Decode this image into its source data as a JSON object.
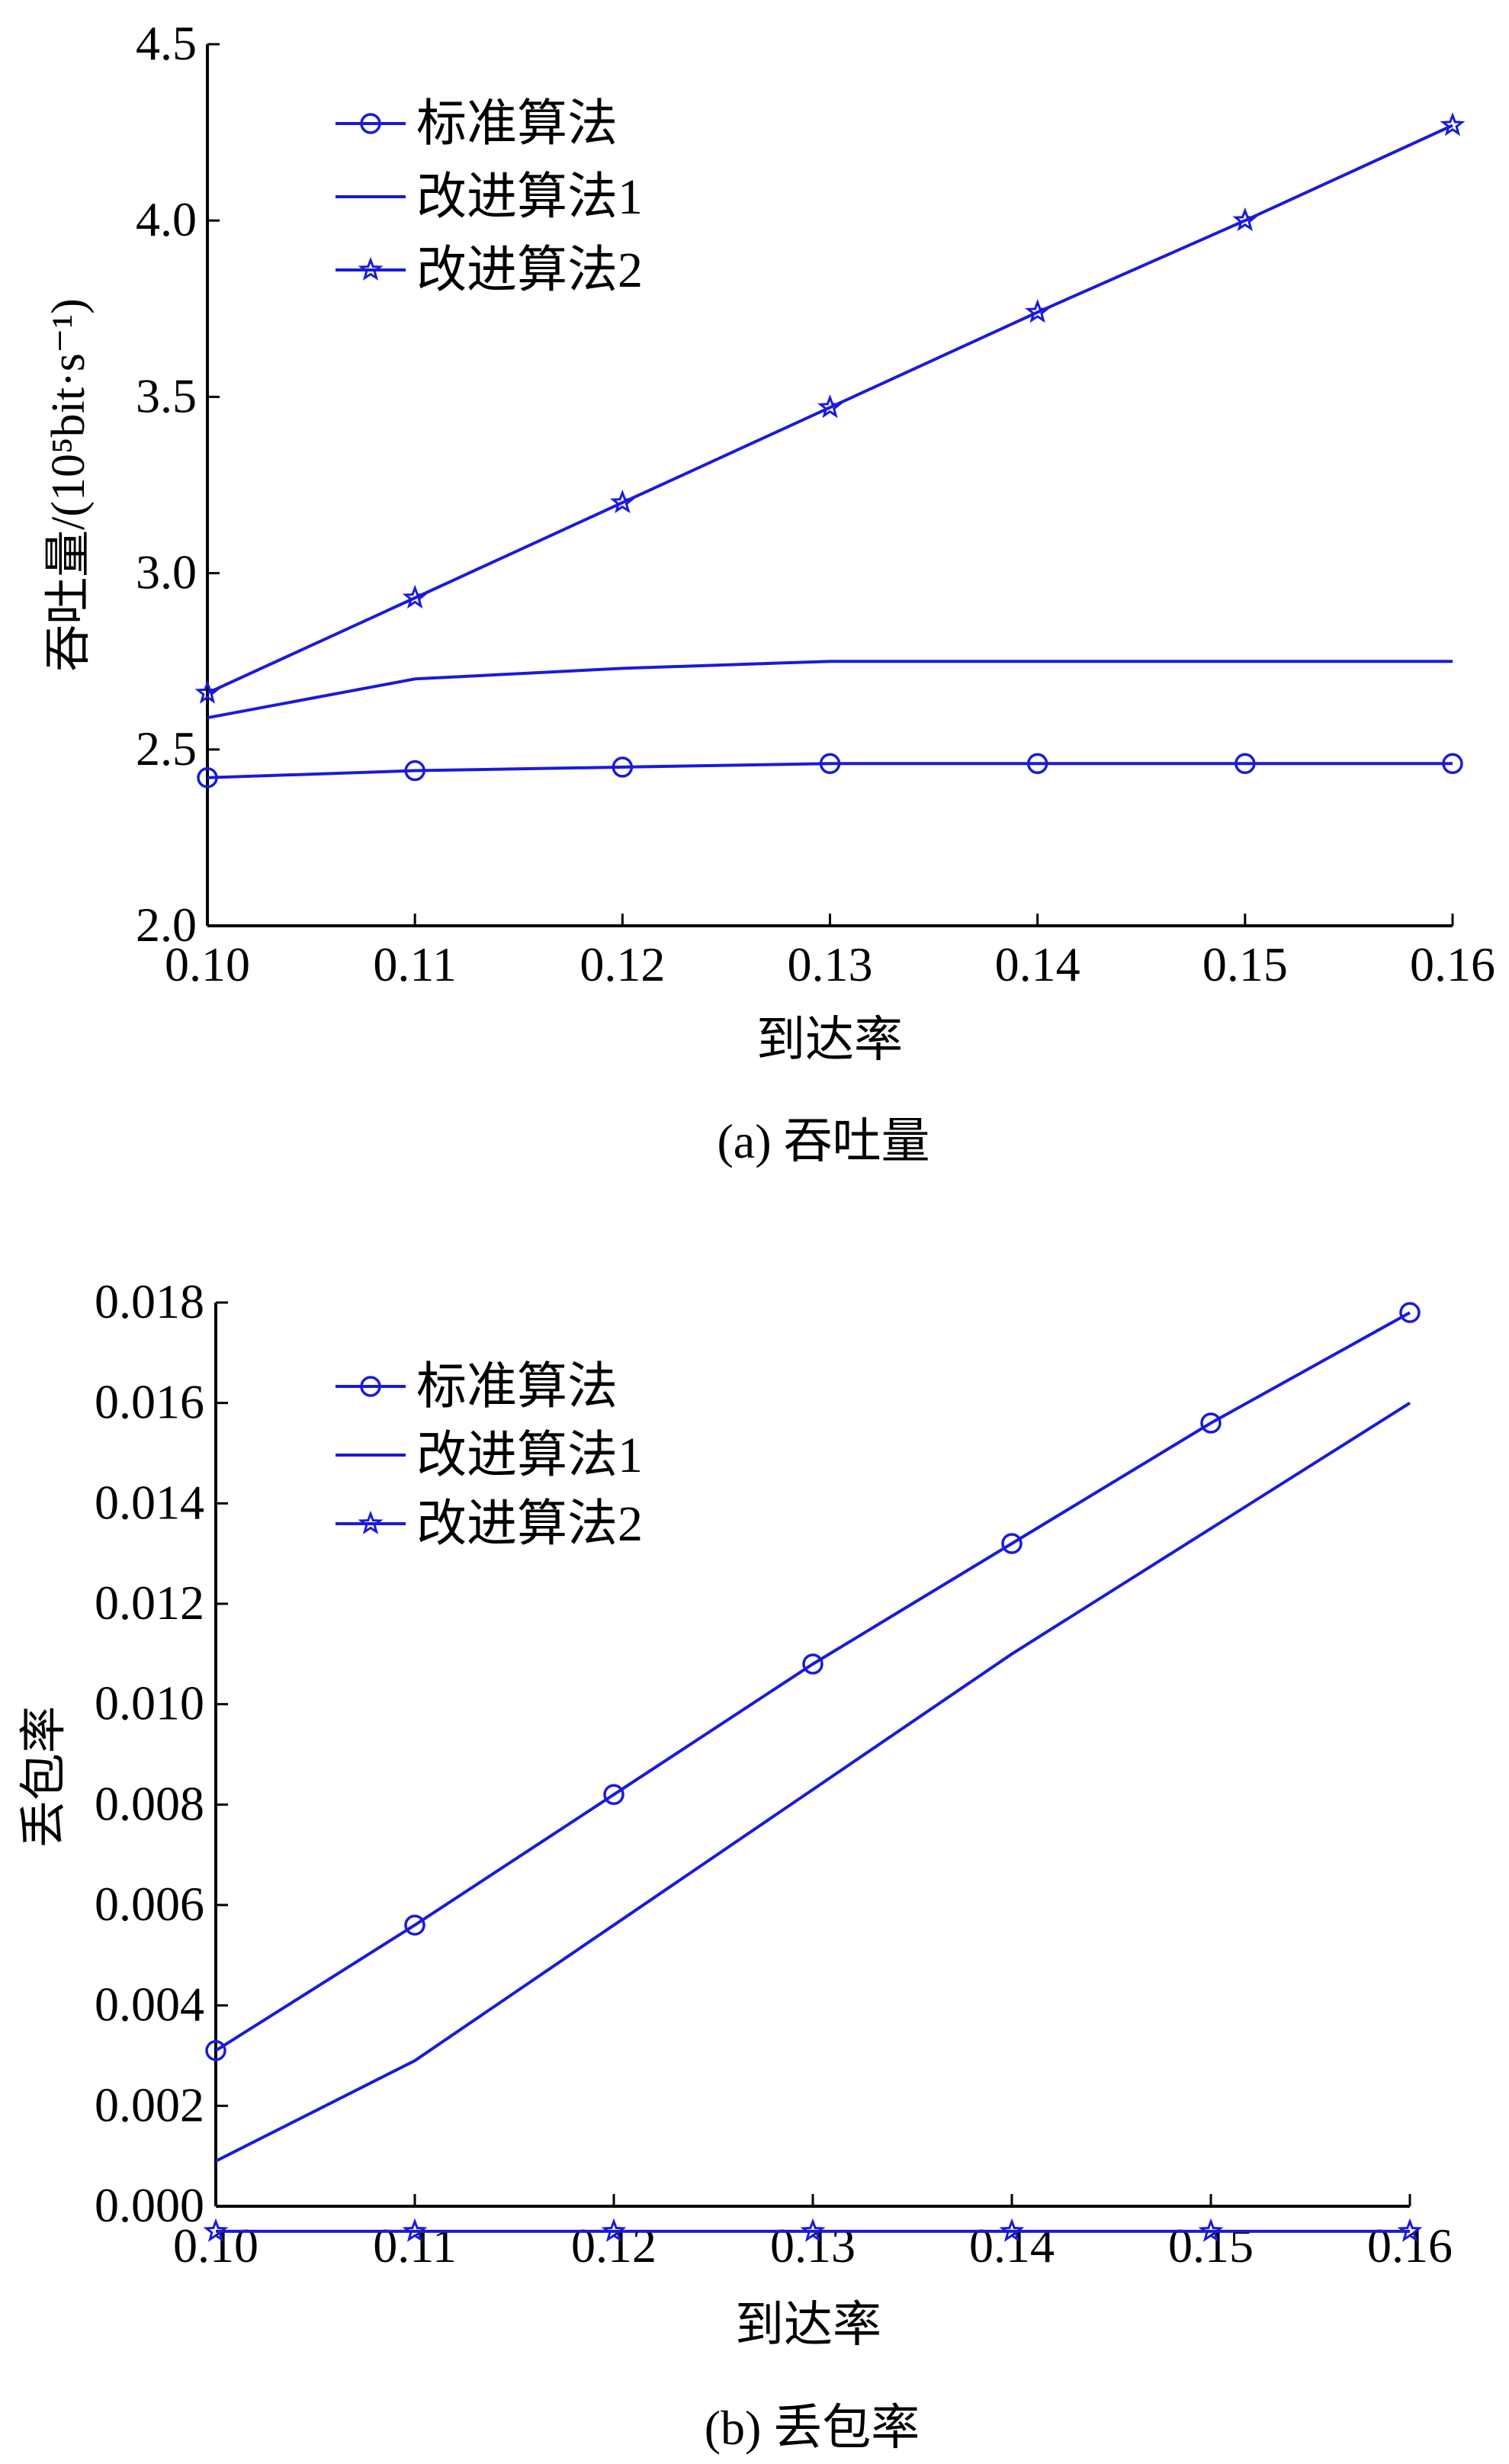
{
  "accent_color": "#1a1adb",
  "chart_data": [
    {
      "type": "line",
      "caption": "(a) 吞吐量",
      "xlabel": "到达率",
      "ylabel": "吞吐量/(10⁵bit·s⁻¹)",
      "x": [
        0.1,
        0.11,
        0.12,
        0.13,
        0.14,
        0.15,
        0.16
      ],
      "x_tick_labels": [
        "0.10",
        "0.11",
        "0.12",
        "0.13",
        "0.14",
        "0.15",
        "0.16"
      ],
      "xlim": [
        0.1,
        0.16
      ],
      "ylim": [
        2.0,
        4.5
      ],
      "y_ticks": [
        2.0,
        2.5,
        3.0,
        3.5,
        4.0,
        4.5
      ],
      "y_tick_labels": [
        "2.0",
        "2.5",
        "3.0",
        "3.5",
        "4.0",
        "4.5"
      ],
      "legend_position": "top-left",
      "grid": false,
      "series": [
        {
          "name": "标准算法",
          "marker": "circle",
          "values": [
            2.42,
            2.44,
            2.45,
            2.46,
            2.46,
            2.46,
            2.46
          ]
        },
        {
          "name": "改进算法1",
          "marker": "none",
          "values": [
            2.59,
            2.7,
            2.73,
            2.75,
            2.75,
            2.75,
            2.75
          ]
        },
        {
          "name": "改进算法2",
          "marker": "star",
          "values": [
            2.66,
            2.93,
            3.2,
            3.47,
            3.74,
            4.0,
            4.27
          ]
        }
      ]
    },
    {
      "type": "line",
      "caption": "(b) 丢包率",
      "xlabel": "到达率",
      "ylabel": "丢包率",
      "x": [
        0.1,
        0.11,
        0.12,
        0.13,
        0.14,
        0.15,
        0.16
      ],
      "x_tick_labels": [
        "0.10",
        "0.11",
        "0.12",
        "0.13",
        "0.14",
        "0.15",
        "0.16"
      ],
      "xlim": [
        0.1,
        0.16
      ],
      "ylim": [
        0.0,
        0.018
      ],
      "y_ticks": [
        0.0,
        0.002,
        0.004,
        0.006,
        0.008,
        0.01,
        0.012,
        0.014,
        0.016,
        0.018
      ],
      "y_tick_labels": [
        "0.000",
        "0.002",
        "0.004",
        "0.006",
        "0.008",
        "0.010",
        "0.012",
        "0.014",
        "0.016",
        "0.018"
      ],
      "legend_position": "top-left",
      "grid": false,
      "series": [
        {
          "name": "标准算法",
          "marker": "circle",
          "values": [
            0.0031,
            0.0056,
            0.0082,
            0.0108,
            0.0132,
            0.0156,
            0.0178
          ]
        },
        {
          "name": "改进算法1",
          "marker": "none",
          "values": [
            0.0009,
            0.0029,
            0.0056,
            0.0083,
            0.011,
            0.0135,
            0.016
          ]
        },
        {
          "name": "改进算法2",
          "marker": "star",
          "values": [
            -0.0005,
            -0.0005,
            -0.0005,
            -0.0005,
            -0.0005,
            -0.0005,
            -0.0005
          ]
        }
      ]
    }
  ]
}
